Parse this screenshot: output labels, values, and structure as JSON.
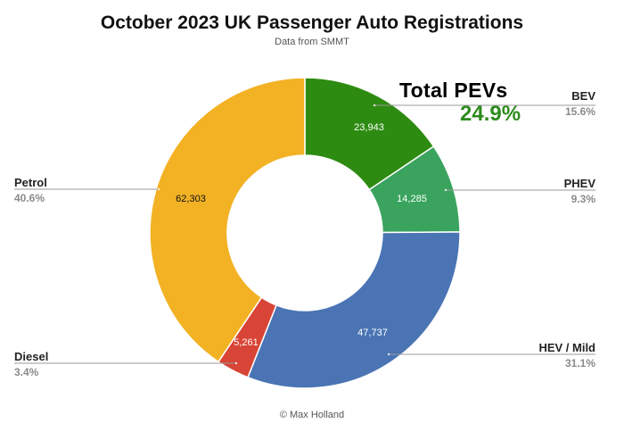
{
  "chart_data": {
    "type": "pie",
    "variant": "donut",
    "title": "October 2023 UK Passenger Auto Registrations",
    "subtitle": "Data from SMMT",
    "credit": "© Max Holland",
    "callout": {
      "title": "Total PEVs",
      "value": "24.9%",
      "color": "#2e8b1e"
    },
    "slices": [
      {
        "name": "BEV",
        "value": 23943,
        "value_label": "23,943",
        "percent": "15.6%",
        "color": "#2e8b12"
      },
      {
        "name": "PHEV",
        "value": 14285,
        "value_label": "14,285",
        "percent": "9.3%",
        "color": "#3aa45e"
      },
      {
        "name": "HEV / Mild",
        "value": 47737,
        "value_label": "47,737",
        "percent": "31.1%",
        "color": "#4a74b4"
      },
      {
        "name": "Diesel",
        "value": 5261,
        "value_label": "5,261",
        "percent": "3.4%",
        "color": "#d84436"
      },
      {
        "name": "Petrol",
        "value": 62303,
        "value_label": "62,303",
        "percent": "40.6%",
        "color": "#f2b224"
      }
    ]
  }
}
